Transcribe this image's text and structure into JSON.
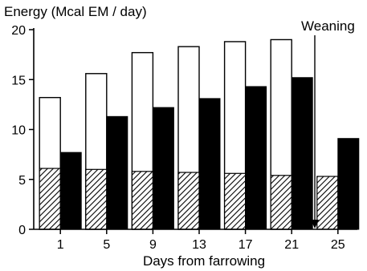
{
  "chart_data": {
    "type": "bar",
    "title": "Energy (Mcal EM / day)",
    "xlabel": "Days from farrowing",
    "ylabel": "",
    "ylim": [
      0,
      20
    ],
    "yticks": [
      0,
      5,
      10,
      15,
      20
    ],
    "categories": [
      "1",
      "5",
      "9",
      "13",
      "17",
      "21",
      "25"
    ],
    "series": [
      {
        "values": [
          13.2,
          15.6,
          17.7,
          18.3,
          18.8,
          19.0,
          null
        ],
        "fill": "#ffffff",
        "pattern": "none"
      },
      {
        "values": [
          6.1,
          6.0,
          5.8,
          5.7,
          5.6,
          5.4,
          5.3
        ],
        "fill": "#ffffff",
        "pattern": "hatched"
      },
      {
        "values": [
          7.7,
          11.3,
          12.2,
          13.1,
          14.3,
          15.2,
          9.1
        ],
        "fill": "#000000",
        "pattern": "solid"
      }
    ],
    "annotation": {
      "text": "Weaning",
      "position_between": [
        "21",
        "25"
      ]
    },
    "grid": false,
    "legend": "none"
  }
}
